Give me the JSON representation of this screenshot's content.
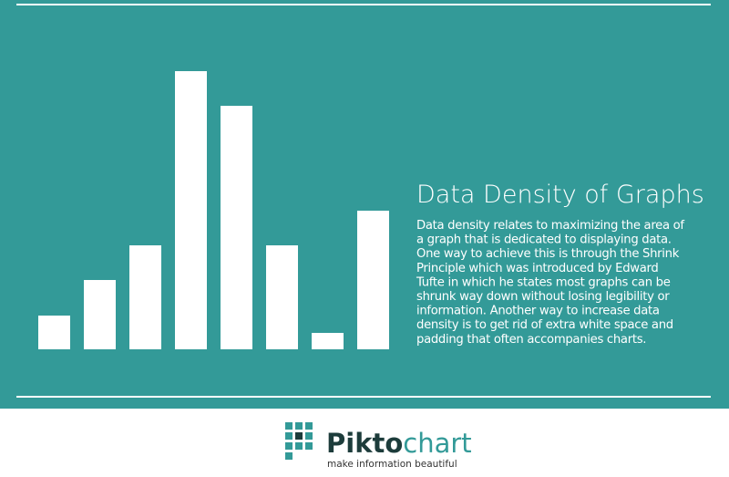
{
  "chart_data": {
    "type": "bar",
    "title": "Data Density of Graphs",
    "text_lines": [
      "Data density relates to maximizing the area of",
      "a graph that is dedicated to displaying data.",
      "One way to achieve this is through the Shrink",
      "Principle which was introduced by Edward",
      "Tufte in which he states most graphs can be",
      "shrunk way down without losing legibility or",
      "information.  Another way to increase data",
      "density is to get rid of extra white space and",
      "padding that often accompanies charts."
    ],
    "categories": [
      null,
      null,
      null,
      null,
      null,
      null,
      null,
      null
    ],
    "values": [
      37,
      76,
      114,
      305,
      267,
      114,
      18,
      152
    ],
    "color": "#ffffff",
    "ylim": [
      0,
      305
    ]
  },
  "footer": {
    "brand_bold": "Pikto",
    "brand_light": "chart",
    "tagline": "make information beautiful"
  }
}
